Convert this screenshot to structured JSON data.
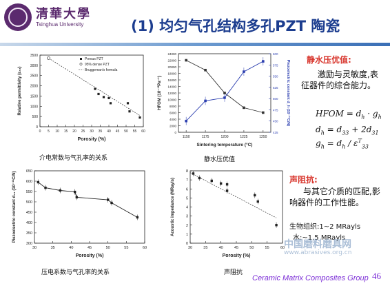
{
  "header": {
    "logo_cn": "清華大學",
    "logo_en": "Tsinghua University",
    "title": "(1) 均匀气孔结构多孔PZT 陶瓷"
  },
  "captions": {
    "c1": "介电常数与气孔率的关系",
    "c2": "静水压优值",
    "c3": "压电系数与气孔率的关系",
    "c4": "声阻抗"
  },
  "right": {
    "hydro_title": "静水压优值:",
    "hydro_text": "激励与灵敏度,表征器件的综合能力。",
    "f1": {
      "lhs": "HFOM",
      "d": "d",
      "dsub": "h",
      "g": "g",
      "gsub": "h"
    },
    "f2": {
      "lhs": "d",
      "lhssub": "h",
      "a": "d",
      "asub": "33",
      "b": "2d",
      "bsub": "31"
    },
    "f3": {
      "lhs": "g",
      "lhssub": "h",
      "num": "d",
      "numsub": "h",
      "den": "ε",
      "densup": "T",
      "densub": "33"
    },
    "imp_title": "声阻抗:",
    "imp_text": "与其它介质的匹配,影响器件的工作性能。",
    "bio": "生物组织:1~2 MRayls",
    "water": "水:~1.5 MRayls"
  },
  "watermark": {
    "line1": "中国磨料磨具网",
    "line2": "www.abrasives.org.cn"
  },
  "footer": {
    "group": "Ceramic Matrix Composites Group",
    "page": "46"
  },
  "chart_data": [
    {
      "type": "scatter",
      "ylabel": "Relative permittivity (ε₃₃)",
      "xlabel": "Porosity (%)",
      "xlim": [
        0,
        60
      ],
      "ylim": [
        0,
        3500
      ],
      "xticks": [
        0,
        5,
        10,
        15,
        20,
        25,
        30,
        35,
        40,
        45,
        50,
        55,
        60
      ],
      "yticks": [
        0,
        500,
        1000,
        1500,
        2000,
        2500,
        3000,
        3500
      ],
      "legend": [
        "Porous PZT",
        "95% dense PZT",
        "Bruggeman's formula"
      ],
      "series": [
        {
          "name": "Porous PZT",
          "x": [
            32,
            34,
            37,
            40,
            41,
            51,
            52,
            58
          ],
          "y": [
            1850,
            1600,
            1450,
            1400,
            1150,
            1150,
            750,
            450
          ]
        },
        {
          "name": "95% dense PZT",
          "x": [
            5
          ],
          "y": [
            3350
          ]
        }
      ],
      "fit_line": {
        "x": [
          5,
          58
        ],
        "y": [
          3350,
          550
        ]
      }
    },
    {
      "type": "line",
      "xlabel": "Sintering temperature (°C)",
      "ylabel_left": "HFOM (10⁻¹³Pa⁻¹)",
      "ylabel_right": "Piezoelectric constant d_h (10⁻¹²C/N)",
      "x": [
        1150,
        1175,
        1200,
        1225,
        1250
      ],
      "xlim": [
        1140,
        1260
      ],
      "ylim_left": [
        0,
        24000
      ],
      "ylim_right": [
        425,
        600
      ],
      "yticks_left": [
        0,
        2000,
        4000,
        6000,
        8000,
        10000,
        12000,
        14000,
        16000,
        18000,
        20000,
        22000,
        24000
      ],
      "yticks_right": [
        425,
        450,
        475,
        500,
        525,
        550,
        575,
        600
      ],
      "series": [
        {
          "axis": "left",
          "values": [
            22000,
            19000,
            12000,
            7500,
            6000
          ]
        },
        {
          "axis": "right",
          "values": [
            450,
            495,
            502,
            560,
            583
          ]
        }
      ]
    },
    {
      "type": "line",
      "xlabel": "Porosity (%)",
      "ylabel": "Piezoelectric constant d₃₃ (10⁻¹²C/N)",
      "xlim": [
        30,
        60
      ],
      "ylim": [
        300,
        650
      ],
      "xticks": [
        30,
        35,
        40,
        45,
        50,
        55,
        60
      ],
      "yticks": [
        300,
        350,
        400,
        450,
        500,
        550,
        600,
        650
      ],
      "x": [
        31,
        33,
        37,
        41,
        41.5,
        50,
        51,
        58
      ],
      "y": [
        595,
        568,
        555,
        548,
        522,
        510,
        495,
        425
      ]
    },
    {
      "type": "scatter",
      "xlabel": "Porosity (%)",
      "ylabel": "Acoustic impedance (MRayls)",
      "xlim": [
        30,
        60
      ],
      "ylim": [
        0,
        8
      ],
      "xticks": [
        30,
        35,
        40,
        45,
        50,
        55,
        60
      ],
      "yticks": [
        0,
        1,
        2,
        3,
        4,
        5,
        6,
        7,
        8
      ],
      "x": [
        31,
        33,
        37,
        40,
        42,
        42,
        51,
        52,
        58
      ],
      "y": [
        7.7,
        7.2,
        6.9,
        6.6,
        6.5,
        5.8,
        5.3,
        4.6,
        2.0
      ],
      "fit_line": {
        "x": [
          30,
          58
        ],
        "y": [
          7.8,
          2.8
        ]
      }
    }
  ]
}
